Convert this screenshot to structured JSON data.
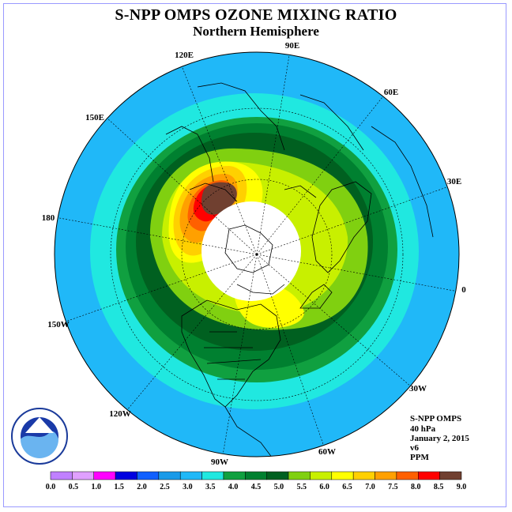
{
  "title": "S-NPP OMPS OZONE MIXING RATIO",
  "subtitle": "Northern Hemisphere",
  "longitude_labels": [
    "90E",
    "120E",
    "60E",
    "150E",
    "30E",
    "180",
    "0",
    "150W",
    "30W",
    "120W",
    "60W",
    "90W"
  ],
  "info": {
    "instrument": "S-NPP OMPS",
    "level": "40 hPa",
    "date": "January 2, 2015",
    "version": "v6",
    "units": "PPM"
  },
  "logo_text": "NOAA",
  "colorbar": {
    "labels": [
      "0.0",
      "0.5",
      "1.0",
      "1.5",
      "2.0",
      "2.5",
      "3.0",
      "3.5",
      "4.0",
      "4.5",
      "5.0",
      "5.5",
      "6.0",
      "6.5",
      "7.0",
      "7.5",
      "8.0",
      "8.5",
      "9.0"
    ],
    "colors": [
      "#c080ff",
      "#e0a0ff",
      "#ff00ff",
      "#0000e0",
      "#1060ff",
      "#1a9ae8",
      "#20b8f8",
      "#20e8e0",
      "#10a040",
      "#008030",
      "#006020",
      "#80d010",
      "#c8f000",
      "#ffff00",
      "#ffd000",
      "#ffa000",
      "#ff6000",
      "#ff0000",
      "#704030"
    ]
  }
}
